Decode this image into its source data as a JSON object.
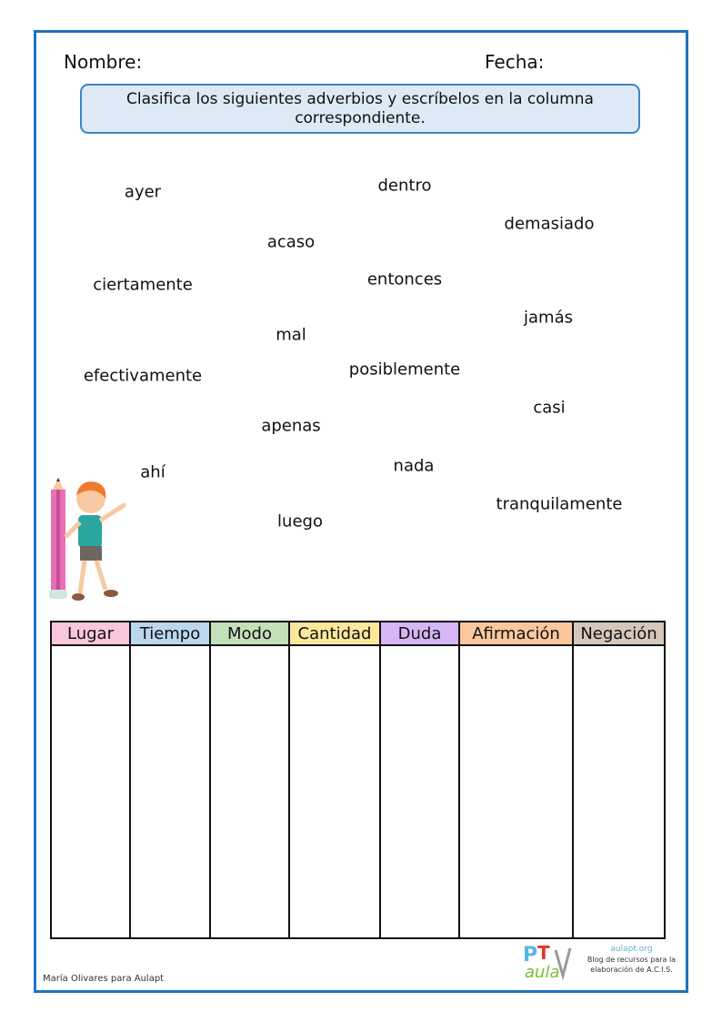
{
  "header": {
    "name_label": "Nombre:",
    "date_label": "Fecha:"
  },
  "instruction": "Clasifica los siguientes adverbios y escríbelos en la columna correspondiente.",
  "words": [
    "ayer",
    "dentro",
    "demasiado",
    "acaso",
    "ciertamente",
    "entonces",
    "jamás",
    "mal",
    "efectivamente",
    "posiblemente",
    "casi",
    "apenas",
    "ahí",
    "nada",
    "tranquilamente",
    "luego"
  ],
  "table": {
    "columns": [
      {
        "label": "Lugar",
        "color": "#f9c6dc"
      },
      {
        "label": "Tiempo",
        "color": "#bcd6ee"
      },
      {
        "label": "Modo",
        "color": "#c3e0b8"
      },
      {
        "label": "Cantidad",
        "color": "#fde79a"
      },
      {
        "label": "Duda",
        "color": "#d6b6f5"
      },
      {
        "label": "Afirmación",
        "color": "#fbc79c"
      },
      {
        "label": "Negación",
        "color": "#d5c8bb"
      }
    ]
  },
  "footer": {
    "credit": "María Olivares para Aulapt",
    "site": "aulapt.org",
    "blog_line1": "Blog de recursos para la",
    "blog_line2": "elaboración de A.C.I.S.",
    "logo_text": "PT aula"
  },
  "colors": {
    "frame": "#1f72bd",
    "instruction_bg": "#dde9f5"
  }
}
